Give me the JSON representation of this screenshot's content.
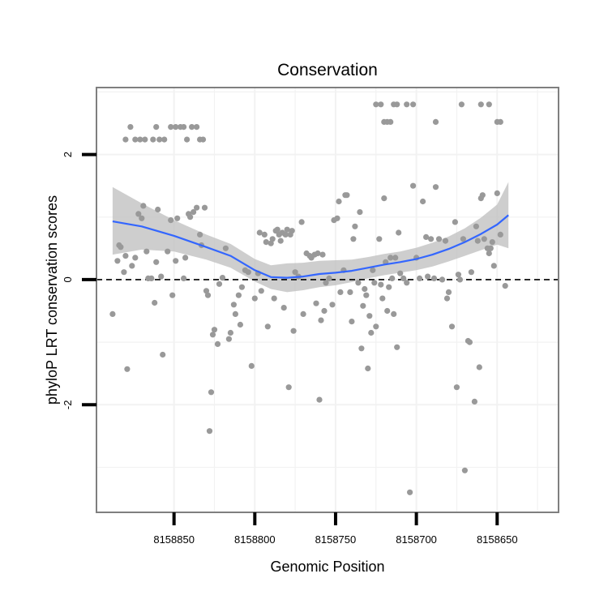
{
  "chart_data": {
    "type": "scatter",
    "title": "Conservation",
    "xlabel": "Genomic Position",
    "ylabel": "phyloP LRT conservation scores",
    "x_reversed": true,
    "xlim": [
      8158898,
      8158612
    ],
    "ylim": [
      -3.72,
      3.07
    ],
    "x_ticks": [
      8158850,
      8158800,
      8158750,
      8158700,
      8158650
    ],
    "x_tick_labels": [
      "8158850",
      "8158800",
      "8158750",
      "8158700",
      "8158650"
    ],
    "y_ticks": [
      -2,
      0,
      2
    ],
    "y_tick_labels": [
      "-2",
      "0",
      "2"
    ],
    "grid": true,
    "reference_line": {
      "y": 0,
      "style": "dashed"
    },
    "colors": {
      "points": "#999999",
      "smooth": "#3366ff",
      "ribbon": "#bdbdbd",
      "panel_border": "#7f7f7f",
      "grid": "#f2f2f2"
    },
    "series": [
      {
        "type": "scatter",
        "points": [
          [
            8158880,
            2.24
          ],
          [
            8158877,
            2.44
          ],
          [
            8158874,
            2.24
          ],
          [
            8158871,
            2.24
          ],
          [
            8158868,
            2.24
          ],
          [
            8158863,
            2.24
          ],
          [
            8158861,
            2.44
          ],
          [
            8158859,
            2.24
          ],
          [
            8158856,
            2.24
          ],
          [
            8158852,
            2.44
          ],
          [
            8158849,
            2.44
          ],
          [
            8158846,
            2.44
          ],
          [
            8158844,
            2.44
          ],
          [
            8158842,
            2.24
          ],
          [
            8158839,
            2.44
          ],
          [
            8158836,
            2.44
          ],
          [
            8158834,
            2.24
          ],
          [
            8158832,
            2.24
          ],
          [
            8158725,
            2.8
          ],
          [
            8158722,
            2.8
          ],
          [
            8158720,
            2.52
          ],
          [
            8158718,
            2.52
          ],
          [
            8158716,
            2.52
          ],
          [
            8158714,
            2.8
          ],
          [
            8158712,
            2.8
          ],
          [
            8158706,
            2.8
          ],
          [
            8158702,
            2.8
          ],
          [
            8158688,
            2.52
          ],
          [
            8158672,
            2.8
          ],
          [
            8158660,
            2.8
          ],
          [
            8158655,
            2.8
          ],
          [
            8158650,
            2.52
          ],
          [
            8158648,
            2.52
          ],
          [
            8158888,
            -0.55
          ],
          [
            8158885,
            0.3
          ],
          [
            8158884,
            0.55
          ],
          [
            8158883,
            0.52
          ],
          [
            8158881,
            0.12
          ],
          [
            8158880,
            0.38
          ],
          [
            8158879,
            -1.43
          ],
          [
            8158876,
            0.22
          ],
          [
            8158874,
            0.35
          ],
          [
            8158872,
            1.05
          ],
          [
            8158870,
            0.98
          ],
          [
            8158869,
            1.18
          ],
          [
            8158867,
            0.45
          ],
          [
            8158866,
            0.02
          ],
          [
            8158864,
            0.02
          ],
          [
            8158862,
            -0.37
          ],
          [
            8158861,
            0.28
          ],
          [
            8158860,
            1.12
          ],
          [
            8158858,
            0.05
          ],
          [
            8158857,
            -1.2
          ],
          [
            8158854,
            0.45
          ],
          [
            8158852,
            0.95
          ],
          [
            8158851,
            -0.25
          ],
          [
            8158849,
            0.3
          ],
          [
            8158848,
            0.98
          ],
          [
            8158844,
            0.02
          ],
          [
            8158843,
            0.35
          ],
          [
            8158841,
            1.05
          ],
          [
            8158840,
            1.0
          ],
          [
            8158838,
            1.08
          ],
          [
            8158836,
            1.15
          ],
          [
            8158834,
            0.72
          ],
          [
            8158833,
            0.55
          ],
          [
            8158831,
            1.15
          ],
          [
            8158830,
            -0.18
          ],
          [
            8158829,
            -0.25
          ],
          [
            8158828,
            -2.42
          ],
          [
            8158827,
            -1.8
          ],
          [
            8158826,
            -0.88
          ],
          [
            8158825,
            -0.8
          ],
          [
            8158823,
            -1.03
          ],
          [
            8158822,
            -0.07
          ],
          [
            8158820,
            0.03
          ],
          [
            8158818,
            0.5
          ],
          [
            8158816,
            -0.95
          ],
          [
            8158815,
            -0.85
          ],
          [
            8158813,
            -0.4
          ],
          [
            8158812,
            -0.55
          ],
          [
            8158810,
            -0.25
          ],
          [
            8158809,
            -0.72
          ],
          [
            8158808,
            -0.12
          ],
          [
            8158806,
            0.15
          ],
          [
            8158804,
            0.12
          ],
          [
            8158802,
            -1.38
          ],
          [
            8158800,
            -0.3
          ],
          [
            8158798,
            0.1
          ],
          [
            8158797,
            0.75
          ],
          [
            8158796,
            -0.18
          ],
          [
            8158794,
            0.72
          ],
          [
            8158793,
            0.6
          ],
          [
            8158792,
            -0.75
          ],
          [
            8158790,
            0.58
          ],
          [
            8158789,
            0.65
          ],
          [
            8158788,
            -0.3
          ],
          [
            8158787,
            0.78
          ],
          [
            8158786,
            0.8
          ],
          [
            8158785,
            0.72
          ],
          [
            8158784,
            0.62
          ],
          [
            8158783,
            0.75
          ],
          [
            8158782,
            -0.45
          ],
          [
            8158781,
            0.72
          ],
          [
            8158780,
            0.8
          ],
          [
            8158779,
            -1.72
          ],
          [
            8158778,
            0.72
          ],
          [
            8158777,
            0.78
          ],
          [
            8158776,
            -0.82
          ],
          [
            8158775,
            0.12
          ],
          [
            8158773,
            0.05
          ],
          [
            8158771,
            0.92
          ],
          [
            8158770,
            -0.55
          ],
          [
            8158768,
            0.42
          ],
          [
            8158766,
            0.38
          ],
          [
            8158765,
            0.35
          ],
          [
            8158763,
            0.4
          ],
          [
            8158762,
            -0.38
          ],
          [
            8158761,
            0.42
          ],
          [
            8158760,
            -1.92
          ],
          [
            8158759,
            -0.65
          ],
          [
            8158758,
            0.4
          ],
          [
            8158757,
            -0.5
          ],
          [
            8158756,
            -0.05
          ],
          [
            8158754,
            0.02
          ],
          [
            8158752,
            -0.4
          ],
          [
            8158751,
            0.95
          ],
          [
            8158749,
            0.98
          ],
          [
            8158748,
            1.25
          ],
          [
            8158747,
            -0.2
          ],
          [
            8158745,
            0.15
          ],
          [
            8158744,
            1.35
          ],
          [
            8158743,
            1.35
          ],
          [
            8158741,
            -0.2
          ],
          [
            8158740,
            -0.67
          ],
          [
            8158739,
            0.65
          ],
          [
            8158738,
            0.85
          ],
          [
            8158736,
            -0.05
          ],
          [
            8158735,
            1.08
          ],
          [
            8158734,
            -1.1
          ],
          [
            8158733,
            -0.42
          ],
          [
            8158732,
            -0.15
          ],
          [
            8158731,
            -0.25
          ],
          [
            8158730,
            -1.42
          ],
          [
            8158729,
            -0.58
          ],
          [
            8158728,
            -0.85
          ],
          [
            8158727,
            0.15
          ],
          [
            8158726,
            -0.05
          ],
          [
            8158725,
            -0.75
          ],
          [
            8158723,
            0.65
          ],
          [
            8158722,
            -0.08
          ],
          [
            8158721,
            -0.3
          ],
          [
            8158720,
            1.3
          ],
          [
            8158719,
            0.28
          ],
          [
            8158718,
            -0.5
          ],
          [
            8158717,
            -0.12
          ],
          [
            8158716,
            0.35
          ],
          [
            8158715,
            0.02
          ],
          [
            8158714,
            -0.55
          ],
          [
            8158713,
            0.35
          ],
          [
            8158712,
            -1.08
          ],
          [
            8158711,
            0.75
          ],
          [
            8158710,
            0.1
          ],
          [
            8158708,
            0.02
          ],
          [
            8158706,
            -0.05
          ],
          [
            8158704,
            -3.4
          ],
          [
            8158702,
            1.5
          ],
          [
            8158700,
            0.35
          ],
          [
            8158698,
            0.02
          ],
          [
            8158696,
            1.25
          ],
          [
            8158694,
            0.68
          ],
          [
            8158693,
            0.05
          ],
          [
            8158691,
            0.65
          ],
          [
            8158689,
            0.02
          ],
          [
            8158688,
            1.48
          ],
          [
            8158686,
            0.65
          ],
          [
            8158684,
            0.0
          ],
          [
            8158682,
            0.62
          ],
          [
            8158681,
            -0.3
          ],
          [
            8158680,
            -0.2
          ],
          [
            8158678,
            -0.75
          ],
          [
            8158676,
            0.92
          ],
          [
            8158675,
            -1.72
          ],
          [
            8158674,
            0.08
          ],
          [
            8158673,
            0.0
          ],
          [
            8158671,
            0.65
          ],
          [
            8158670,
            -3.05
          ],
          [
            8158668,
            -0.98
          ],
          [
            8158667,
            -1.0
          ],
          [
            8158666,
            0.12
          ],
          [
            8158664,
            -1.95
          ],
          [
            8158663,
            0.85
          ],
          [
            8158662,
            0.62
          ],
          [
            8158661,
            -1.4
          ],
          [
            8158660,
            1.3
          ],
          [
            8158659,
            1.35
          ],
          [
            8158658,
            0.65
          ],
          [
            8158656,
            0.5
          ],
          [
            8158655,
            0.42
          ],
          [
            8158654,
            0.5
          ],
          [
            8158653,
            0.6
          ],
          [
            8158652,
            0.22
          ],
          [
            8158650,
            1.38
          ],
          [
            8158648,
            0.72
          ],
          [
            8158645,
            -0.1
          ]
        ]
      },
      {
        "type": "smooth",
        "x": [
          8158888,
          8158870,
          8158850,
          8158830,
          8158815,
          8158800,
          8158790,
          8158780,
          8158770,
          8158760,
          8158750,
          8158740,
          8158730,
          8158720,
          8158710,
          8158700,
          8158690,
          8158680,
          8158670,
          8158660,
          8158650,
          8158643
        ],
        "values": [
          0.93,
          0.85,
          0.7,
          0.52,
          0.38,
          0.15,
          0.04,
          0.03,
          0.05,
          0.09,
          0.11,
          0.14,
          0.19,
          0.24,
          0.28,
          0.33,
          0.4,
          0.49,
          0.6,
          0.73,
          0.88,
          1.03
        ],
        "ribbon_lower": [
          0.4,
          0.48,
          0.45,
          0.32,
          0.19,
          -0.03,
          -0.15,
          -0.2,
          -0.17,
          -0.12,
          -0.09,
          -0.04,
          0.02,
          0.07,
          0.11,
          0.15,
          0.21,
          0.29,
          0.38,
          0.47,
          0.56,
          0.5
        ],
        "ribbon_upper": [
          1.48,
          1.22,
          0.95,
          0.72,
          0.57,
          0.33,
          0.23,
          0.26,
          0.27,
          0.3,
          0.31,
          0.32,
          0.36,
          0.41,
          0.45,
          0.51,
          0.59,
          0.69,
          0.82,
          0.99,
          1.2,
          1.56
        ]
      }
    ]
  }
}
